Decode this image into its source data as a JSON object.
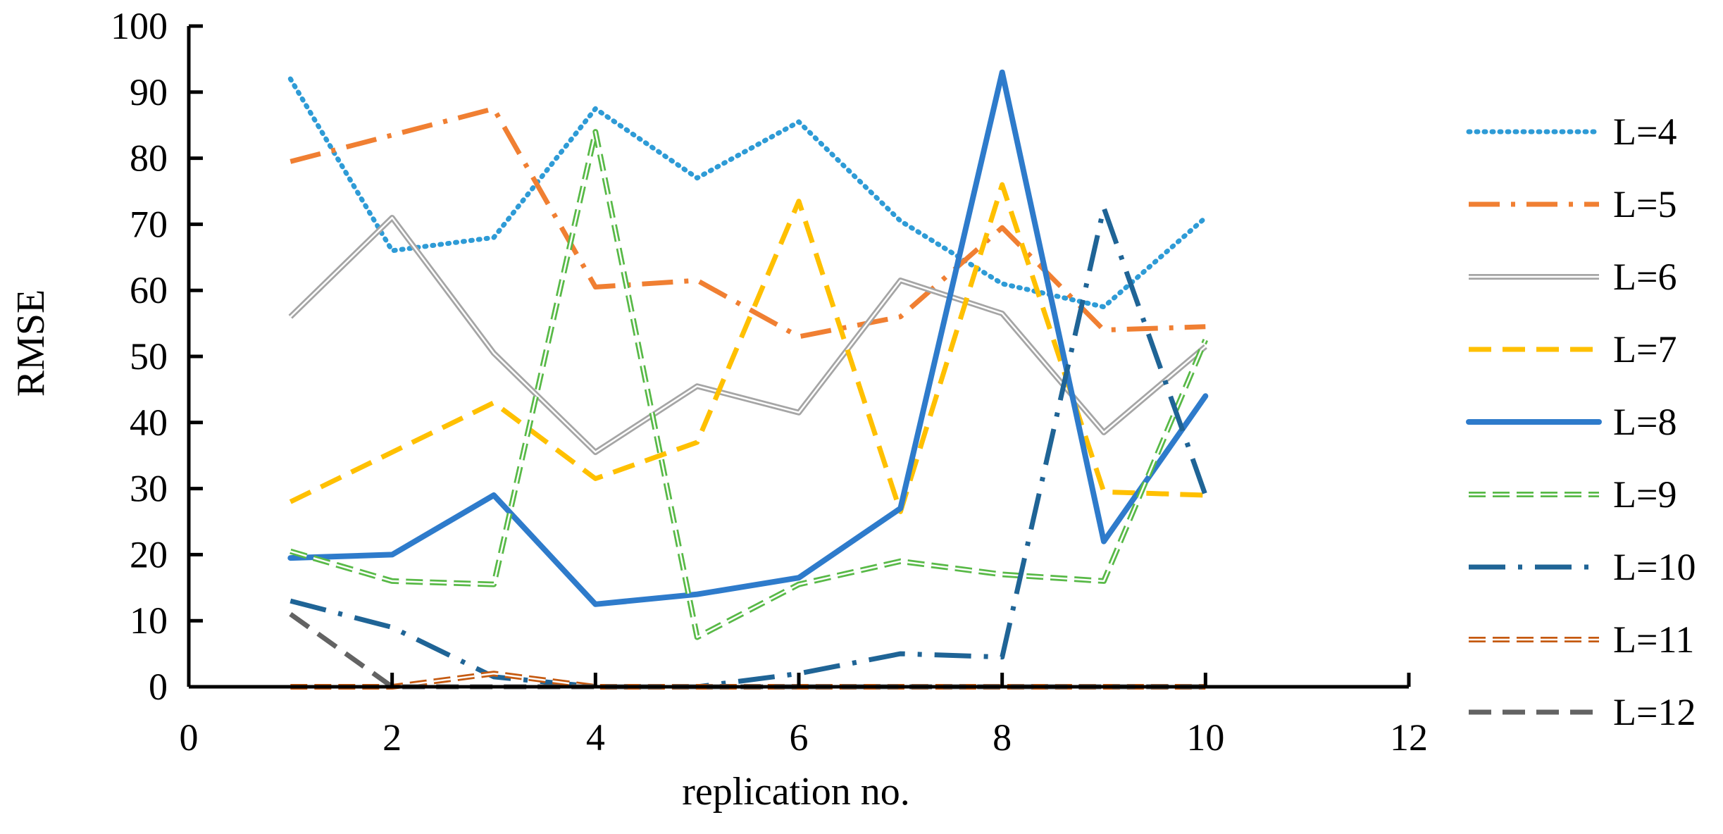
{
  "chart_data": {
    "type": "line",
    "title": "",
    "xlabel": "replication no.",
    "ylabel": "RMSE",
    "xlim": [
      0,
      12
    ],
    "ylim": [
      0,
      100
    ],
    "xticks": [
      0,
      2,
      4,
      6,
      8,
      10,
      12
    ],
    "yticks": [
      0,
      10,
      20,
      30,
      40,
      50,
      60,
      70,
      80,
      90,
      100
    ],
    "grid": false,
    "legend_position": "right",
    "x": [
      1,
      2,
      3,
      4,
      5,
      6,
      7,
      8,
      9,
      10
    ],
    "series": [
      {
        "name": "L=4",
        "color": "#2E9BD6",
        "style": "dotted",
        "values": [
          92,
          66,
          68,
          87.5,
          77,
          85.5,
          70.5,
          61,
          57.5,
          71
        ]
      },
      {
        "name": "L=5",
        "color": "#F07F32",
        "style": "dash-dot",
        "values": [
          79.5,
          83.5,
          87.5,
          60.5,
          61.5,
          53,
          56,
          69.5,
          54,
          54.5
        ]
      },
      {
        "name": "L=6",
        "color": "#A5A5A5",
        "style": "double",
        "values": [
          56,
          71,
          50.5,
          35.5,
          45.5,
          41.5,
          61.5,
          56.5,
          38.5,
          51.5
        ]
      },
      {
        "name": "L=7",
        "color": "#FFC000",
        "style": "dashed",
        "values": [
          28,
          35.5,
          43,
          31.5,
          37,
          73.5,
          26.5,
          76,
          29.5,
          29
        ]
      },
      {
        "name": "L=8",
        "color": "#2E7BCB",
        "style": "solid",
        "values": [
          19.5,
          20,
          29,
          12.5,
          14,
          16.5,
          27,
          93,
          22,
          44
        ]
      },
      {
        "name": "L=9",
        "color": "#58B947",
        "style": "double-dash",
        "values": [
          20.5,
          16,
          15.5,
          84,
          7.5,
          15.5,
          19,
          17,
          16,
          52.5
        ]
      },
      {
        "name": "L=10",
        "color": "#1F6496",
        "style": "long-dash-dot",
        "values": [
          13,
          9,
          1.5,
          0,
          0,
          2,
          5,
          4.5,
          72.5,
          29
        ]
      },
      {
        "name": "L=11",
        "color": "#C55A11",
        "style": "double-dash",
        "values": [
          0,
          0,
          2,
          0,
          0,
          0,
          0,
          0,
          0,
          0
        ]
      },
      {
        "name": "L=12",
        "color": "#636363",
        "style": "dashed",
        "values": [
          11,
          0,
          0,
          0,
          0,
          0,
          0,
          0,
          0,
          0
        ]
      }
    ]
  }
}
